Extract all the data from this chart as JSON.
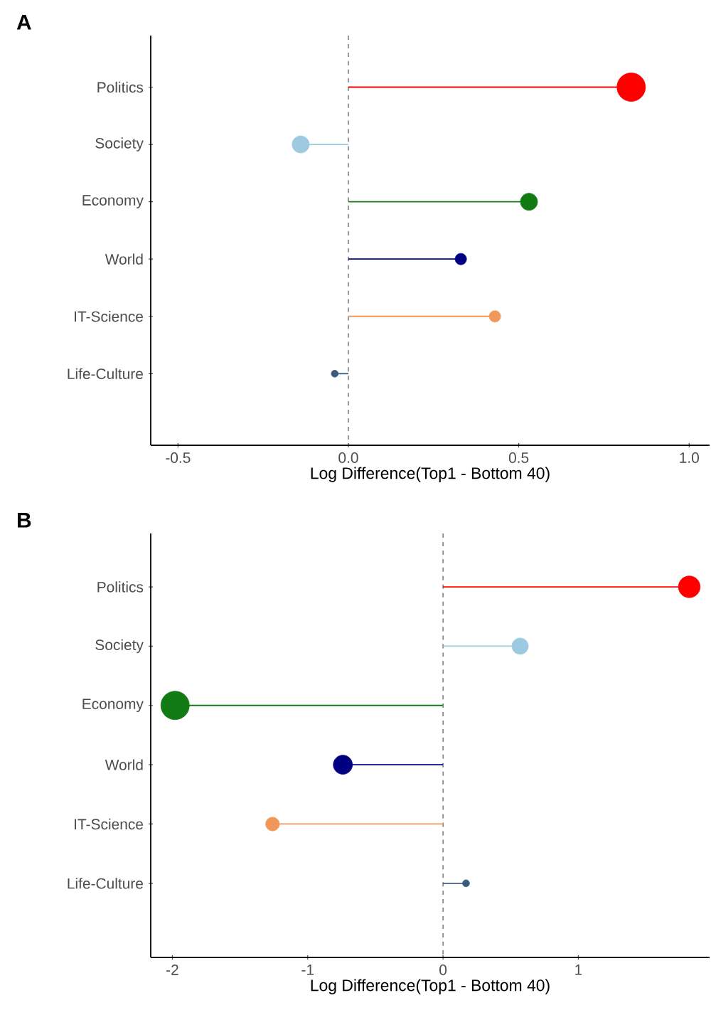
{
  "chart_data": [
    {
      "type": "lollipop",
      "title": "A",
      "xlabel": "Log Difference(Top1 - Bottom 40)",
      "categories": [
        "Politics",
        "Society",
        "Economy",
        "World",
        "IT-Science",
        "Life-Culture"
      ],
      "values": [
        0.83,
        -0.14,
        0.53,
        0.33,
        0.43,
        -0.04
      ],
      "sizes": [
        1,
        0.36,
        0.36,
        0.16,
        0.16,
        0.06
      ],
      "colors": [
        "#ff0000",
        "#9ecae1",
        "#137b13",
        "#000080",
        "#f0975a",
        "#3b5b7e"
      ],
      "xlim": [
        -0.58,
        1.06
      ],
      "xticks": [
        -0.5,
        {
          "value": 0,
          "label": "0.0"
        },
        0.5,
        {
          "value": 1,
          "label": "1.0"
        }
      ],
      "ref_lines": [
        {
          "axis": "x",
          "value": 0,
          "line_style": "dashed",
          "color": "#555555"
        }
      ],
      "orientation": "horizontal",
      "marker": "circle",
      "grid": false
    },
    {
      "type": "lollipop",
      "title": "B",
      "xlabel": "Log Difference(Top1 - Bottom 40)",
      "categories": [
        "Politics",
        "Society",
        "Economy",
        "World",
        "IT-Science",
        "Life-Culture"
      ],
      "values": [
        1.82,
        0.57,
        -1.98,
        -0.74,
        -1.26,
        0.17
      ],
      "sizes": [
        0.58,
        0.33,
        1,
        0.45,
        0.23,
        0.06
      ],
      "colors": [
        "#ff0000",
        "#9ecae1",
        "#137b13",
        "#000080",
        "#f0975a",
        "#3b5b7e"
      ],
      "xlim": [
        -2.16,
        1.97
      ],
      "xticks": [
        -2,
        -1,
        0,
        1
      ],
      "ref_lines": [
        {
          "axis": "x",
          "value": 0,
          "line_style": "dashed",
          "color": "#555555"
        }
      ],
      "orientation": "horizontal",
      "marker": "circle",
      "grid": false
    }
  ]
}
